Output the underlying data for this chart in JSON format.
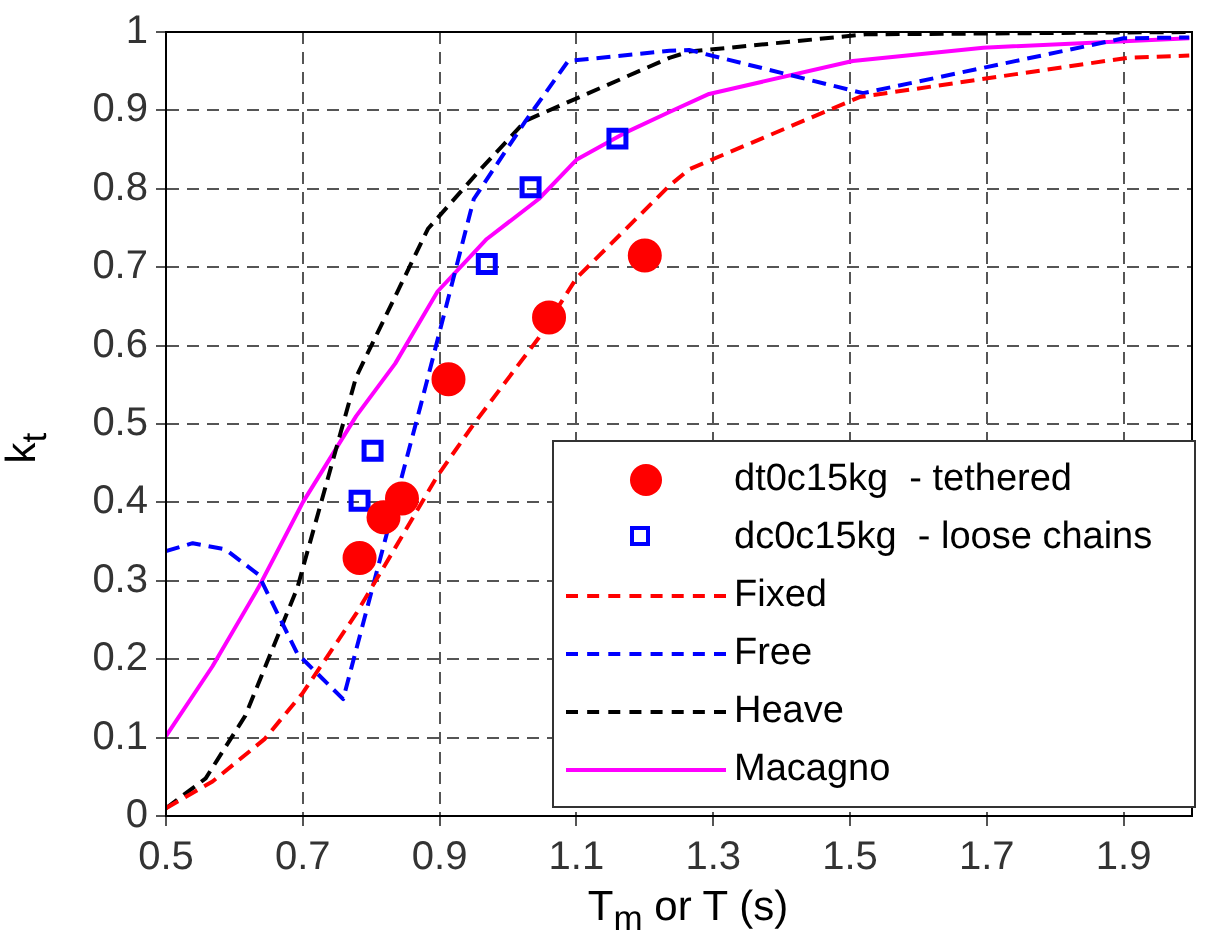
{
  "chart_data": {
    "type": "line",
    "xlabel": "T$_{m}$ or T (s)",
    "ylabel": "k$_{t}$",
    "xlim": [
      0.5,
      2.0
    ],
    "xticks": [
      0.5,
      0.7,
      0.9,
      1.1,
      1.3,
      1.5,
      1.7,
      1.9
    ],
    "ylim": [
      0,
      1
    ],
    "yticks": [
      0,
      0.1,
      0.2,
      0.3,
      0.4,
      0.5,
      0.6,
      0.7,
      0.8,
      0.9,
      1
    ],
    "grid": true,
    "legend": "bottom right",
    "series": [
      {
        "name": "dt0c15kg  - tethered",
        "type": "scatter",
        "marker": "circle",
        "color": "#ff0000",
        "x": [
          0.783,
          0.818,
          0.845,
          0.913,
          1.06,
          1.2
        ],
        "values": [
          0.329,
          0.381,
          0.405,
          0.557,
          0.636,
          0.715
        ]
      },
      {
        "name": "dc0c15kg  - loose chains",
        "type": "scatter",
        "marker": "square",
        "color": "#0000ff",
        "x": [
          0.783,
          0.802,
          0.969,
          1.033,
          1.16
        ],
        "values": [
          0.402,
          0.466,
          0.704,
          0.802,
          0.864
        ]
      },
      {
        "name": "Fixed",
        "line_style": "dashed",
        "color": "#ff0000",
        "x": [
          0.5,
          0.568,
          0.644,
          0.7,
          0.778,
          0.835,
          0.897,
          0.95,
          1.045,
          1.1,
          1.236,
          1.265,
          1.514,
          1.905,
          1.996
        ],
        "values": [
          0.01,
          0.044,
          0.098,
          0.157,
          0.258,
          0.342,
          0.434,
          0.5,
          0.61,
          0.686,
          0.804,
          0.825,
          0.917,
          0.967,
          0.97
        ]
      },
      {
        "name": "Free",
        "line_style": "dashed",
        "color": "#0000ff",
        "x": [
          0.5,
          0.539,
          0.587,
          0.635,
          0.692,
          0.759,
          0.807,
          0.873,
          0.95,
          1.026,
          1.088,
          1.236,
          1.265,
          1.519,
          1.9,
          1.996
        ],
        "values": [
          0.338,
          0.348,
          0.34,
          0.308,
          0.207,
          0.149,
          0.308,
          0.526,
          0.787,
          0.887,
          0.963,
          0.976,
          0.977,
          0.922,
          0.992,
          0.993
        ]
      },
      {
        "name": "Heave",
        "line_style": "dashed",
        "color": "#000000",
        "x": [
          0.5,
          0.558,
          0.616,
          0.692,
          0.778,
          0.883,
          0.96,
          1.026,
          1.236,
          1.265,
          1.523,
          1.996
        ],
        "values": [
          0.01,
          0.048,
          0.128,
          0.291,
          0.56,
          0.749,
          0.825,
          0.887,
          0.967,
          0.975,
          0.997,
          1.0
        ]
      },
      {
        "name": "Macagno",
        "line_style": "solid",
        "color": "#ff00ff",
        "x": [
          0.5,
          0.568,
          0.635,
          0.7,
          0.778,
          0.835,
          0.897,
          0.969,
          1.045,
          1.1,
          1.17,
          1.236,
          1.294,
          1.504,
          1.695,
          1.996
        ],
        "values": [
          0.102,
          0.191,
          0.291,
          0.4,
          0.51,
          0.577,
          0.669,
          0.736,
          0.787,
          0.837,
          0.871,
          0.898,
          0.921,
          0.963,
          0.98,
          0.992
        ]
      }
    ]
  }
}
